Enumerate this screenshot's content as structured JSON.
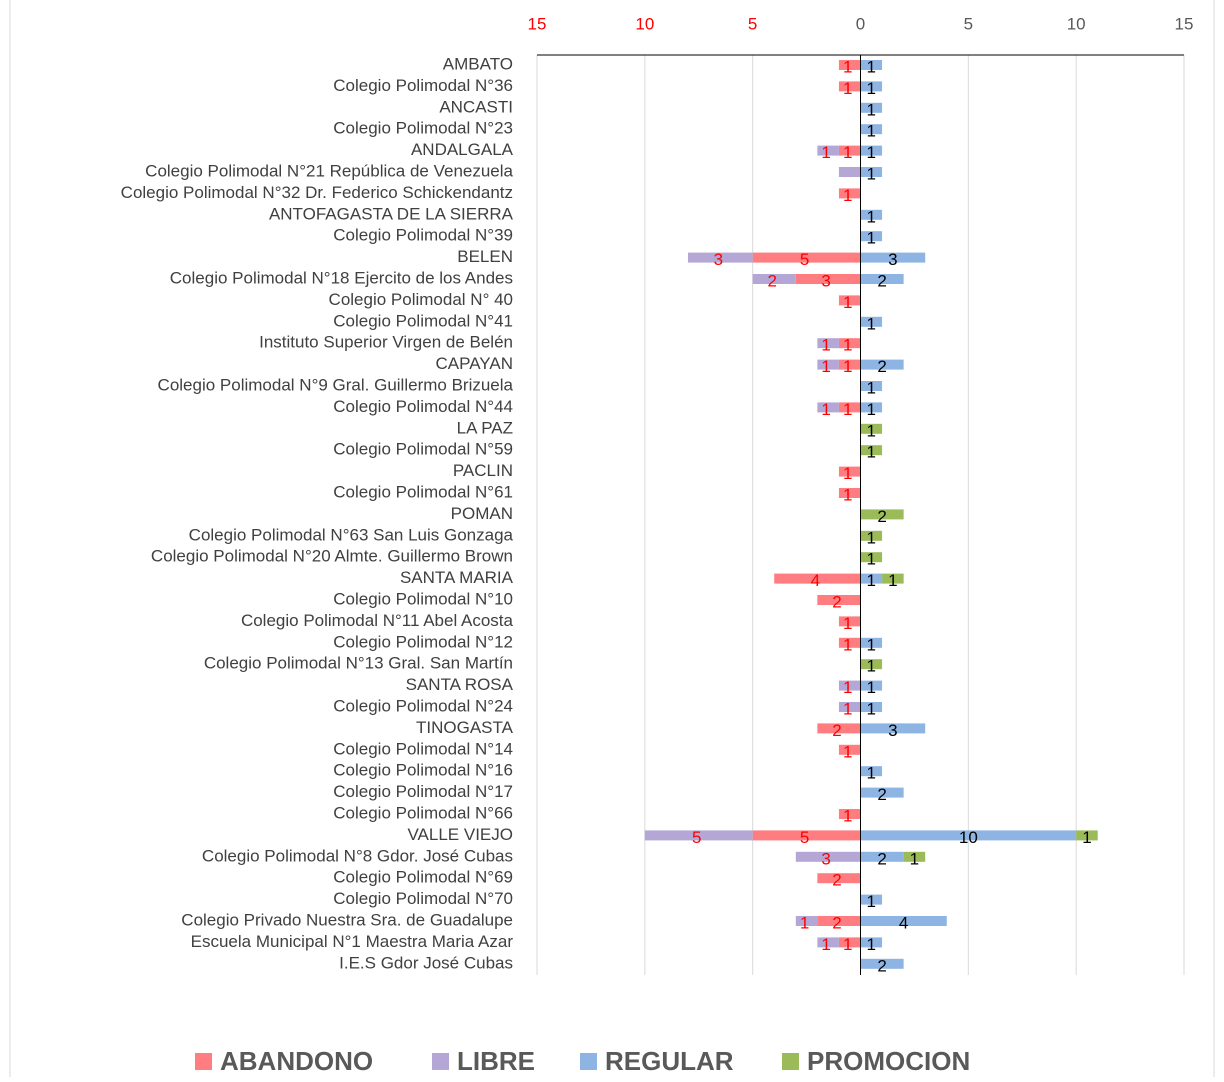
{
  "chart_data": {
    "type": "diverging-bar",
    "categories": [
      "AMBATO",
      "Colegio Polimodal N°36",
      "ANCASTI",
      "Colegio Polimodal N°23",
      "ANDALGALA",
      "Colegio Polimodal N°21 República de Venezuela",
      "Colegio Polimodal N°32 Dr. Federico Schickendantz",
      "ANTOFAGASTA DE LA SIERRA",
      "Colegio Polimodal N°39",
      "BELEN",
      "Colegio Polimodal N°18 Ejercito de los Andes",
      "Colegio Polimodal N° 40",
      "Colegio Polimodal N°41",
      "Instituto Superior Virgen de Belén",
      "CAPAYAN",
      "Colegio Polimodal N°9 Gral. Guillermo Brizuela",
      "Colegio Polimodal N°44",
      "LA PAZ",
      "Colegio Polimodal N°59",
      "PACLIN",
      "Colegio Polimodal N°61",
      "POMAN",
      "Colegio Polimodal N°63 San Luis Gonzaga",
      "Colegio Polimodal N°20 Almte. Guillermo Brown",
      "SANTA MARIA",
      "Colegio Polimodal N°10",
      "Colegio Polimodal N°11 Abel Acosta",
      "Colegio Polimodal N°12",
      "Colegio Polimodal N°13 Gral. San Martín",
      "SANTA ROSA",
      "Colegio Polimodal N°24",
      "TINOGASTA",
      "Colegio Polimodal N°14",
      "Colegio Polimodal N°16",
      "Colegio Polimodal N°17",
      "Colegio Polimodal N°66",
      "VALLE VIEJO",
      "Colegio Polimodal N°8 Gdor. José Cubas",
      "Colegio Polimodal N°69",
      "Colegio Polimodal N°70",
      "Colegio Privado Nuestra Sra. de Guadalupe",
      "Escuela Municipal N°1 Maestra Maria Azar",
      "I.E.S Gdor José Cubas"
    ],
    "series": [
      {
        "name": "ABANDONO",
        "color": "#ff7c80",
        "label_color": "#ff0000",
        "values": [
          -1,
          -1,
          null,
          null,
          -1,
          null,
          -1,
          null,
          null,
          -5,
          -3,
          -1,
          null,
          -1,
          -1,
          null,
          -1,
          null,
          null,
          -1,
          -1,
          null,
          null,
          null,
          -4,
          -2,
          -1,
          -1,
          null,
          null,
          null,
          -2,
          -1,
          null,
          null,
          -1,
          -5,
          null,
          -2,
          null,
          -2,
          -1,
          null
        ],
        "value_labels": [
          "1",
          "1",
          null,
          null,
          "1",
          null,
          "1",
          null,
          null,
          "5",
          "3",
          "1",
          null,
          "1",
          "1",
          null,
          "1",
          null,
          null,
          "1",
          "1",
          null,
          null,
          null,
          "4",
          "2",
          "1",
          "1",
          null,
          null,
          null,
          "2",
          "1",
          null,
          null,
          "1",
          "5",
          null,
          "2",
          null,
          "2",
          "1",
          null
        ]
      },
      {
        "name": "LIBRE",
        "color": "#b4a7d6",
        "label_color": "#ff0000",
        "values": [
          null,
          null,
          null,
          null,
          -1,
          -1,
          null,
          null,
          null,
          -3,
          -2,
          null,
          null,
          -1,
          -1,
          null,
          -1,
          null,
          null,
          null,
          null,
          null,
          null,
          null,
          null,
          null,
          null,
          null,
          null,
          -1,
          -1,
          null,
          null,
          null,
          null,
          null,
          -5,
          -3,
          null,
          null,
          -1,
          -1,
          null
        ],
        "value_labels": [
          null,
          null,
          null,
          null,
          "1",
          null,
          null,
          null,
          null,
          "3",
          "2",
          null,
          null,
          "1",
          "1",
          null,
          "1",
          null,
          null,
          null,
          null,
          null,
          null,
          null,
          null,
          null,
          null,
          null,
          null,
          "1",
          "1",
          null,
          null,
          null,
          null,
          null,
          "5",
          "3",
          null,
          null,
          "1",
          "1",
          null
        ]
      },
      {
        "name": "REGULAR",
        "color": "#8eb4e3",
        "label_color": "#000000",
        "values": [
          1,
          1,
          1,
          1,
          1,
          1,
          null,
          1,
          1,
          3,
          2,
          null,
          1,
          null,
          2,
          1,
          1,
          null,
          null,
          null,
          null,
          null,
          null,
          null,
          1,
          null,
          null,
          1,
          null,
          1,
          1,
          3,
          null,
          1,
          2,
          null,
          10,
          2,
          null,
          1,
          4,
          1,
          2
        ]
      },
      {
        "name": "PROMOCION",
        "color": "#9bbb59",
        "label_color": "#000000",
        "values": [
          null,
          null,
          null,
          null,
          null,
          null,
          null,
          null,
          null,
          null,
          null,
          null,
          null,
          null,
          null,
          null,
          null,
          1,
          1,
          null,
          null,
          2,
          1,
          1,
          1,
          null,
          null,
          null,
          1,
          null,
          null,
          null,
          null,
          null,
          null,
          null,
          1,
          1,
          null,
          null,
          null,
          null,
          null
        ]
      }
    ],
    "xlim": [
      -15,
      15
    ],
    "xticks": [
      {
        "value": -15,
        "label": "15"
      },
      {
        "value": -10,
        "label": "10"
      },
      {
        "value": -5,
        "label": "5"
      },
      0,
      5,
      10,
      15
    ],
    "negative_tick_color": "#ff0000",
    "grid": true,
    "legend": "bottom"
  }
}
